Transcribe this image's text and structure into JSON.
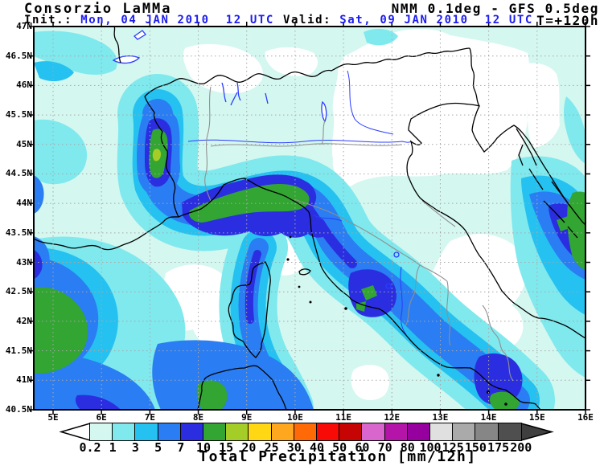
{
  "header": {
    "brand": "Consorzio LaMMa",
    "model": "NMM 0.1deg - GFS 0.5deg",
    "init_label": "Init.:",
    "init_value": " Mon, 04 JAN 2010  12 UTC",
    "valid_label": "Valid:",
    "valid_value": " Sat, 09 JAN 2010  12 UTC",
    "lead": "T=+120h"
  },
  "axes": {
    "lat_labels": [
      "47N",
      "46.5N",
      "46N",
      "45.5N",
      "45N",
      "44.5N",
      "44N",
      "43.5N",
      "43N",
      "42.5N",
      "42N",
      "41.5N",
      "41N",
      "40.5N"
    ],
    "lon_labels": [
      "5E",
      "6E",
      "7E",
      "8E",
      "9E",
      "10E",
      "11E",
      "12E",
      "13E",
      "14E",
      "15E",
      "16E"
    ]
  },
  "legend": {
    "title": "Total Precipitation [mm/12h]",
    "tick_values": [
      "0.2",
      "1",
      "3",
      "5",
      "7",
      "10",
      "15",
      "20",
      "25",
      "30",
      "40",
      "50",
      "60",
      "70",
      "80",
      "100",
      "125",
      "150",
      "175",
      "200"
    ],
    "box_colors": [
      "#d4f7f0",
      "#7fe9ee",
      "#25c1f0",
      "#2a7df2",
      "#2a2ee0",
      "#32a532",
      "#a5cd28",
      "#ffd813",
      "#ffa81f",
      "#ff6a07",
      "#f80b06",
      "#c70404",
      "#d966cc",
      "#b414a8",
      "#95009e",
      "#e0e0e0",
      "#aaaaaa",
      "#868686",
      "#4f4f4f"
    ]
  },
  "colors": {
    "header_accent": "#1c1cf0",
    "grid": "#a8a8a8",
    "coastline": "#000000",
    "region_border": "#909090",
    "water_features": "#2a3cff",
    "legend_right_arrow": "#3f3f3f"
  }
}
